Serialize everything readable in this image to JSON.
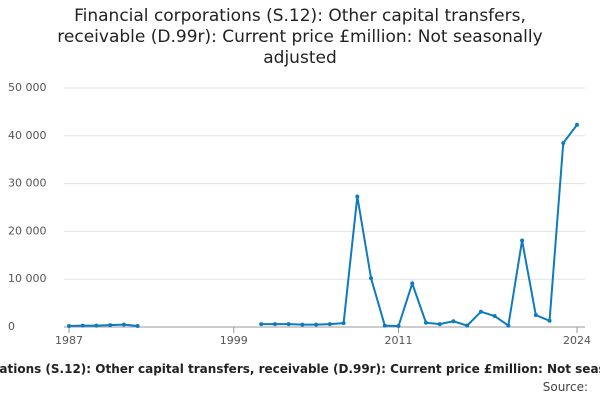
{
  "chart_data": {
    "type": "line",
    "title": "Financial corporations (S.12): Other capital transfers, receivable (D.99r): Current price £million: Not seasonally adjusted",
    "source_label": "Source:",
    "x": [
      1987,
      1988,
      1989,
      1990,
      1991,
      1992,
      1993,
      1994,
      1995,
      1996,
      1997,
      1998,
      1999,
      2000,
      2001,
      2002,
      2003,
      2004,
      2005,
      2006,
      2007,
      2008,
      2009,
      2010,
      2011,
      2012,
      2013,
      2014,
      2015,
      2016,
      2017,
      2018,
      2019,
      2020,
      2021,
      2022,
      2023,
      2024
    ],
    "series": [
      {
        "name": "Other capital transfers, receivable",
        "color": "#0f7bbf",
        "values": [
          200,
          300,
          300,
          400,
          500,
          200,
          null,
          null,
          null,
          null,
          null,
          null,
          null,
          null,
          600,
          600,
          600,
          500,
          500,
          600,
          800,
          27300,
          10200,
          300,
          200,
          9100,
          900,
          600,
          1200,
          300,
          3200,
          2300,
          300,
          18100,
          2500,
          1300,
          38500,
          42300
        ]
      }
    ],
    "xlim": [
      1987,
      2024
    ],
    "xticks": [
      1987,
      1999,
      2011,
      2024
    ],
    "ylim": [
      0,
      50000
    ],
    "yticks": [
      0,
      {
        "value": 10000,
        "label": "10 000"
      },
      {
        "value": 20000,
        "label": "20 000"
      },
      {
        "value": 30000,
        "label": "30 000"
      },
      {
        "value": 40000,
        "label": "40 000"
      },
      {
        "value": 50000,
        "label": "50 000"
      }
    ],
    "grid": true
  }
}
